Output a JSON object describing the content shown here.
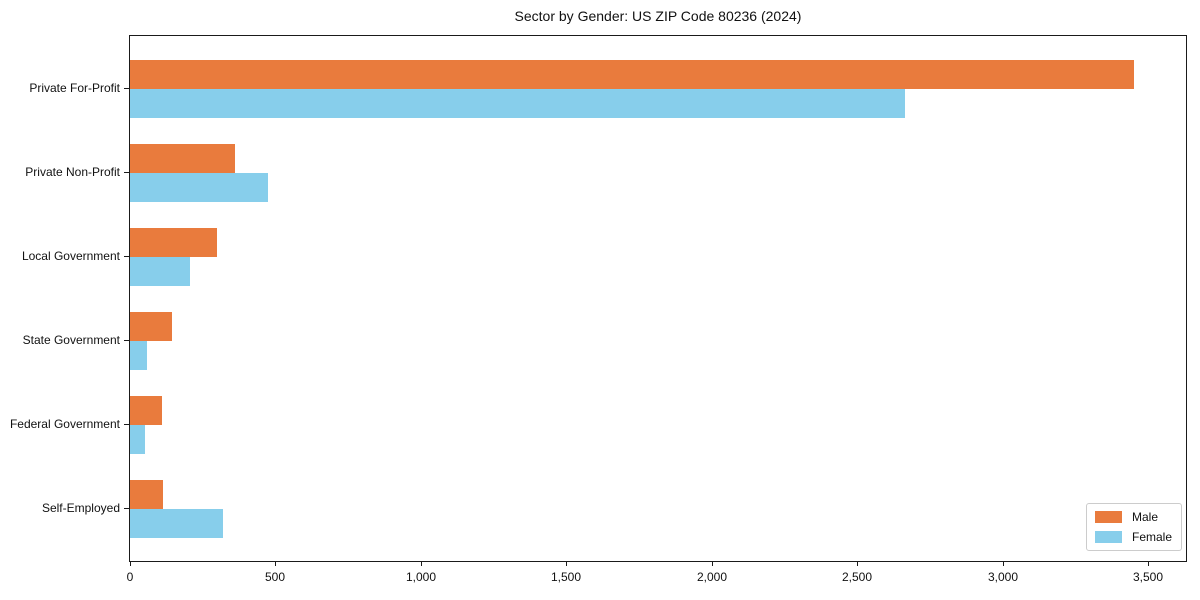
{
  "chart_data": {
    "type": "bar",
    "orientation": "horizontal",
    "title": "Sector by Gender: US ZIP Code 80236 (2024)",
    "categories": [
      "Private For-Profit",
      "Private Non-Profit",
      "Local Government",
      "State Government",
      "Federal Government",
      "Self-Employed"
    ],
    "series": [
      {
        "name": "Male",
        "color": "#E97B3D",
        "values": [
          3450,
          360,
          300,
          145,
          110,
          115
        ]
      },
      {
        "name": "Female",
        "color": "#87CEEB",
        "values": [
          2665,
          475,
          205,
          60,
          50,
          320
        ]
      }
    ],
    "x_ticks": [
      0,
      500,
      1000,
      1500,
      2000,
      2500,
      3000,
      3500
    ],
    "x_tick_labels": [
      "0",
      "500",
      "1,000",
      "1,500",
      "2,000",
      "2,500",
      "3,000",
      "3,500"
    ],
    "xlim": [
      0,
      3630
    ],
    "xlabel": "",
    "ylabel": "",
    "grid": false,
    "legend_position": "lower right"
  }
}
